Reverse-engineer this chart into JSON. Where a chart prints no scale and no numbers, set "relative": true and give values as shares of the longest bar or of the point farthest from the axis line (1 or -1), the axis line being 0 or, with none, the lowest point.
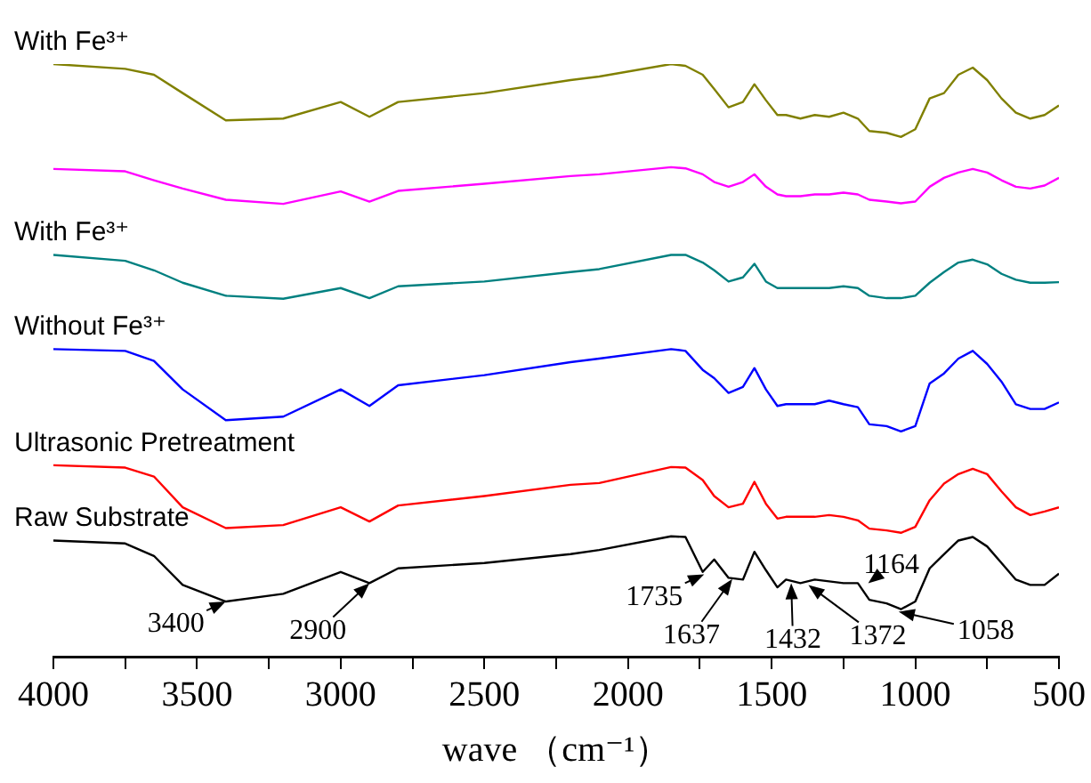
{
  "chart_data": {
    "type": "line",
    "relative": true,
    "xlabel": "wave （cm⁻¹）",
    "marker": "none",
    "line_style": "solid",
    "xlim": [
      4000,
      500
    ],
    "xticks": [
      4000,
      {
        "value": 3750,
        "label": null
      },
      3500,
      {
        "value": 3250,
        "label": null
      },
      3000,
      {
        "value": 2750,
        "label": null
      },
      2500,
      {
        "value": 2250,
        "label": null
      },
      2000,
      {
        "value": 1750,
        "label": null
      },
      1500,
      {
        "value": 1250,
        "label": null
      },
      1000,
      {
        "value": 750,
        "label": null
      },
      500
    ],
    "x": [
      4000,
      3750,
      3650,
      3550,
      3400,
      3200,
      3000,
      2900,
      2800,
      2500,
      2200,
      2100,
      1850,
      1800,
      1740,
      1700,
      1650,
      1600,
      1560,
      1520,
      1480,
      1450,
      1400,
      1350,
      1300,
      1250,
      1200,
      1160,
      1100,
      1050,
      1000,
      950,
      900,
      850,
      800,
      750,
      700,
      650,
      600,
      550,
      500
    ],
    "series": [
      {
        "name": "With Fe³⁺",
        "color": "#808000",
        "values": [
          1.0,
          0.992,
          0.982,
          0.951,
          0.905,
          0.908,
          0.936,
          0.911,
          0.936,
          0.951,
          0.973,
          0.979,
          1.0,
          0.997,
          0.982,
          0.958,
          0.927,
          0.936,
          0.966,
          0.939,
          0.914,
          0.914,
          0.908,
          0.914,
          0.911,
          0.918,
          0.908,
          0.887,
          0.884,
          0.877,
          0.89,
          0.942,
          0.951,
          0.982,
          0.994,
          0.973,
          0.942,
          0.918,
          0.908,
          0.914,
          0.93
        ]
      },
      {
        "color": "#ff00ff",
        "values": [
          0.823,
          0.819,
          0.804,
          0.79,
          0.771,
          0.764,
          0.785,
          0.768,
          0.786,
          0.798,
          0.811,
          0.814,
          0.826,
          0.824,
          0.814,
          0.801,
          0.793,
          0.801,
          0.814,
          0.793,
          0.78,
          0.777,
          0.777,
          0.78,
          0.78,
          0.783,
          0.78,
          0.771,
          0.768,
          0.765,
          0.768,
          0.793,
          0.808,
          0.817,
          0.823,
          0.817,
          0.804,
          0.793,
          0.79,
          0.795,
          0.808
        ]
      },
      {
        "name": "With Fe³⁺",
        "color": "#008080",
        "values": [
          0.678,
          0.668,
          0.652,
          0.631,
          0.609,
          0.604,
          0.622,
          0.605,
          0.625,
          0.633,
          0.649,
          0.654,
          0.678,
          0.678,
          0.665,
          0.652,
          0.633,
          0.64,
          0.663,
          0.633,
          0.622,
          0.622,
          0.622,
          0.622,
          0.622,
          0.625,
          0.622,
          0.609,
          0.605,
          0.605,
          0.609,
          0.631,
          0.649,
          0.665,
          0.67,
          0.662,
          0.646,
          0.636,
          0.631,
          0.631,
          0.632
        ]
      },
      {
        "name": "Without Fe³⁺",
        "color": "#0000ff",
        "values": [
          0.519,
          0.516,
          0.499,
          0.451,
          0.399,
          0.405,
          0.451,
          0.423,
          0.458,
          0.475,
          0.497,
          0.503,
          0.519,
          0.516,
          0.484,
          0.47,
          0.445,
          0.455,
          0.487,
          0.451,
          0.423,
          0.426,
          0.426,
          0.426,
          0.432,
          0.426,
          0.421,
          0.392,
          0.389,
          0.38,
          0.389,
          0.461,
          0.478,
          0.503,
          0.516,
          0.494,
          0.464,
          0.426,
          0.418,
          0.418,
          0.429
        ]
      },
      {
        "name": "Ultrasonic Pretreatment",
        "color": "#ff0000",
        "values": [
          0.323,
          0.319,
          0.304,
          0.252,
          0.217,
          0.222,
          0.252,
          0.228,
          0.255,
          0.271,
          0.29,
          0.293,
          0.32,
          0.319,
          0.298,
          0.271,
          0.252,
          0.258,
          0.295,
          0.258,
          0.233,
          0.236,
          0.236,
          0.236,
          0.239,
          0.236,
          0.23,
          0.216,
          0.213,
          0.209,
          0.219,
          0.264,
          0.292,
          0.308,
          0.317,
          0.308,
          0.279,
          0.252,
          0.239,
          0.245,
          0.252
        ]
      },
      {
        "name": "Raw Substrate",
        "color": "#000000",
        "values": [
          0.196,
          0.191,
          0.17,
          0.121,
          0.093,
          0.106,
          0.143,
          0.124,
          0.149,
          0.158,
          0.173,
          0.18,
          0.203,
          0.202,
          0.143,
          0.164,
          0.133,
          0.13,
          0.177,
          0.146,
          0.117,
          0.13,
          0.124,
          0.13,
          0.127,
          0.124,
          0.124,
          0.096,
          0.09,
          0.08,
          0.093,
          0.149,
          0.173,
          0.196,
          0.202,
          0.186,
          0.158,
          0.13,
          0.121,
          0.121,
          0.14
        ]
      }
    ],
    "annotations": [
      {
        "text": "3400",
        "x": 3400,
        "y": 0.093
      },
      {
        "text": "2900",
        "x": 2900,
        "y": 0.124
      },
      {
        "text": "1735",
        "x": 1735,
        "y": 0.139
      },
      {
        "text": "1637",
        "x": 1637,
        "y": 0.131
      },
      {
        "text": "1432",
        "x": 1432,
        "y": 0.124
      },
      {
        "text": "1372",
        "x": 1372,
        "y": 0.121
      },
      {
        "text": "1164",
        "x": 1164,
        "y": 0.124
      },
      {
        "text": "1058",
        "x": 1058,
        "y": 0.076
      }
    ]
  }
}
